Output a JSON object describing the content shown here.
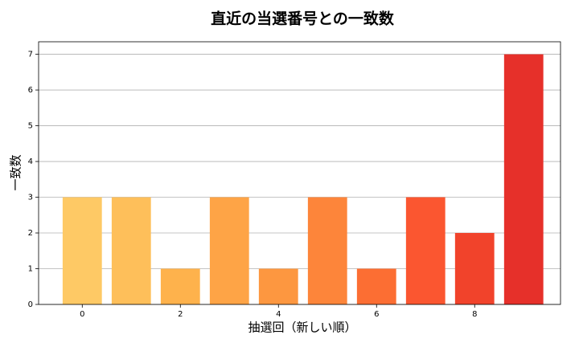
{
  "chart_data": {
    "type": "bar",
    "title": "直近の当選番号との一致数",
    "xlabel": "抽選回（新しい順）",
    "ylabel": "一致数",
    "x": [
      0,
      1,
      2,
      3,
      4,
      5,
      6,
      7,
      8,
      9
    ],
    "values": [
      3,
      3,
      1,
      3,
      1,
      3,
      1,
      3,
      2,
      7
    ],
    "colors": [
      "#fec965",
      "#febf5a",
      "#feb24c",
      "#fea446",
      "#fd9740",
      "#fd853a",
      "#fc6e33",
      "#fb5630",
      "#f1432b",
      "#e6302a"
    ],
    "xlim": [
      -0.89,
      9.75
    ],
    "xticks": [
      0,
      2,
      4,
      6,
      8
    ],
    "ylim": [
      0,
      7.35
    ],
    "yticks": [
      0,
      1,
      2,
      3,
      4,
      5,
      6,
      7
    ],
    "grid": true
  }
}
